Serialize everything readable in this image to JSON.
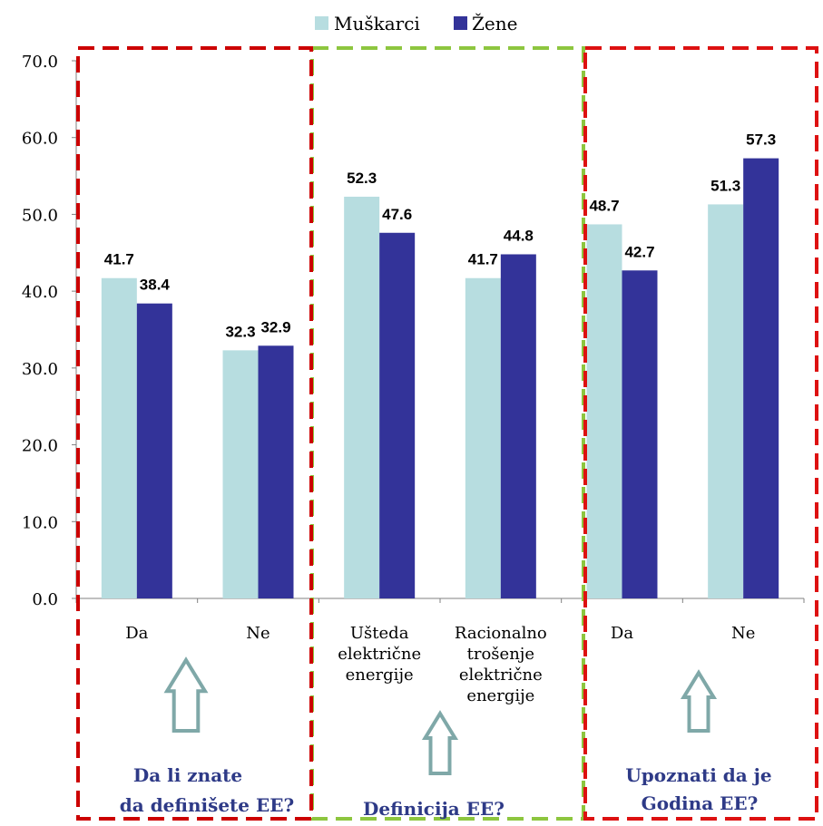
{
  "chart_data": {
    "type": "bar",
    "title": "",
    "xlabel": "",
    "ylabel": "",
    "ylim": [
      0,
      70
    ],
    "yticks": [
      "0.0",
      "10.0",
      "20.0",
      "30.0",
      "40.0",
      "50.0",
      "60.0",
      "70.0"
    ],
    "legend_position": "top-center",
    "grid": false,
    "categories": [
      [
        "Da"
      ],
      [
        "Ne"
      ],
      [
        "Ušteda",
        "električne",
        "energije"
      ],
      [
        "Racionalno",
        "trošenje",
        "električne",
        "energije"
      ],
      [
        "Da"
      ],
      [
        "Ne"
      ]
    ],
    "series": [
      {
        "name": "Muškarci",
        "color": "#b7dde0",
        "values": [
          41.7,
          32.3,
          52.3,
          41.7,
          48.7,
          51.3
        ],
        "labels": [
          "41.7",
          "32.3",
          "52.3",
          "41.7",
          "48.7",
          "51.3"
        ]
      },
      {
        "name": "Žene",
        "color": "#333399",
        "values": [
          38.4,
          32.9,
          47.6,
          44.8,
          42.7,
          57.3
        ],
        "labels": [
          "38.4",
          "32.9",
          "47.6",
          "44.8",
          "42.7",
          "57.3"
        ]
      }
    ],
    "groups": [
      {
        "caption": [
          "Da li znate",
          "da definišete EE?"
        ],
        "border_color": "#cc0000"
      },
      {
        "caption": [
          "Definicija EE?"
        ],
        "border_color": "#8dc63f"
      },
      {
        "caption": [
          "Upoznati da je",
          "Godina EE?"
        ],
        "border_color": "#dd1111"
      }
    ],
    "caption_color": "#2e3a87",
    "arrow_color": "#7fa8a8"
  }
}
